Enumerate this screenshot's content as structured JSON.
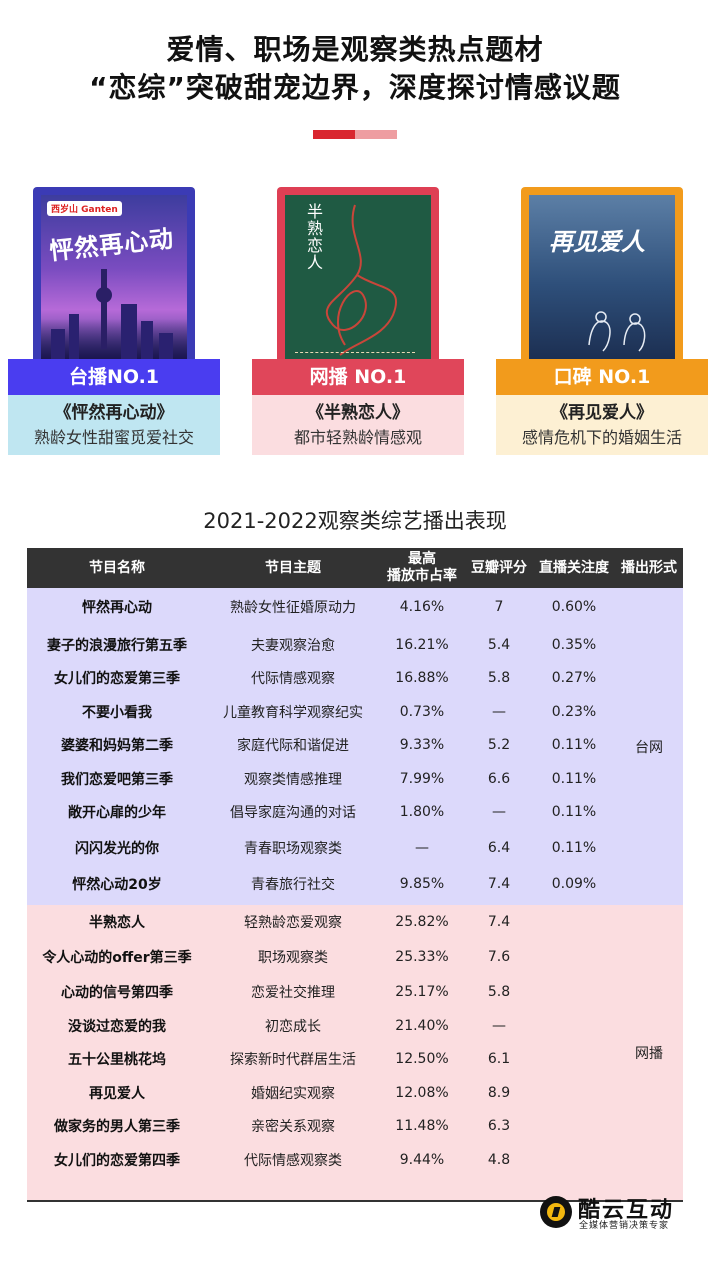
{
  "header": {
    "line1": "爱情、职场是观察类热点题材",
    "line2": "“恋综”突破甜宠边界，深度探讨情感议题"
  },
  "colors": {
    "accent_red": "#d9262f",
    "accent_pink": "#ee9da1",
    "tv_blue": "#4a3df0",
    "web_red": "#e0465a",
    "praise_orange": "#f29b1c"
  },
  "cards": [
    {
      "rank": "台播NO.1",
      "title": "《怦然再心动》",
      "subtitle": "熟龄女性甜蜜觅爱社交",
      "poster_text": "怦然再心动",
      "poster_logo": "西岁山 Ganten",
      "rank_color": "#4a3df0",
      "box_color": "#bfe6f1"
    },
    {
      "rank": "网播 NO.1",
      "title": "《半熟恋人》",
      "subtitle": "都市轻熟龄情感观",
      "poster_text": "半熟恋人",
      "rank_color": "#e0465a",
      "box_color": "#fbdde0"
    },
    {
      "rank": "口碑 NO.1",
      "title": "《再见爱人》",
      "subtitle": "感情危机下的婚姻生活",
      "poster_text": "再见爱人",
      "rank_color": "#f29b1c",
      "box_color": "#fdf0d3"
    }
  ],
  "table": {
    "title": "2021-2022观察类综艺播出表现",
    "headers": {
      "name": "节目名称",
      "theme": "节目主题",
      "share_line1": "最高",
      "share_line2": "播放市占率",
      "douban": "豆瓣评分",
      "live": "直播关注度",
      "form": "播出形式"
    },
    "tv_form": "台网",
    "web_form": "网播",
    "tv_rows": [
      {
        "name": "怦然再心动",
        "theme": "熟龄女性征婚原动力",
        "share": "4.16%",
        "douban": "7",
        "live": "0.60%"
      },
      {
        "name": "妻子的浪漫旅行第五季",
        "theme": "夫妻观察治愈",
        "share": "16.21%",
        "douban": "5.4",
        "live": "0.35%"
      },
      {
        "name": "女儿们的恋爱第三季",
        "theme": "代际情感观察",
        "share": "16.88%",
        "douban": "5.8",
        "live": "0.27%"
      },
      {
        "name": "不要小看我",
        "theme": "儿童教育科学观察纪实",
        "share": "0.73%",
        "douban": "—",
        "live": "0.23%"
      },
      {
        "name": "婆婆和妈妈第二季",
        "theme": "家庭代际和谐促进",
        "share": "9.33%",
        "douban": "5.2",
        "live": "0.11%"
      },
      {
        "name": "我们恋爱吧第三季",
        "theme": "观察类情感推理",
        "share": "7.99%",
        "douban": "6.6",
        "live": "0.11%"
      },
      {
        "name": "敞开心扉的少年",
        "theme": "倡导家庭沟通的对话",
        "share": "1.80%",
        "douban": "—",
        "live": "0.11%"
      },
      {
        "name": "闪闪发光的你",
        "theme": "青春职场观察类",
        "share": "—",
        "douban": "6.4",
        "live": "0.11%"
      },
      {
        "name": "怦然心动20岁",
        "theme": "青春旅行社交",
        "share": "9.85%",
        "douban": "7.4",
        "live": "0.09%"
      }
    ],
    "web_rows": [
      {
        "name": "半熟恋人",
        "theme": "轻熟龄恋爱观察",
        "share": "25.82%",
        "douban": "7.4"
      },
      {
        "name": "令人心动的offer第三季",
        "theme": "职场观察类",
        "share": "25.33%",
        "douban": "7.6"
      },
      {
        "name": "心动的信号第四季",
        "theme": "恋爱社交推理",
        "share": "25.17%",
        "douban": "5.8"
      },
      {
        "name": "没谈过恋爱的我",
        "theme": "初恋成长",
        "share": "21.40%",
        "douban": "—"
      },
      {
        "name": "五十公里桃花坞",
        "theme": "探索新时代群居生活",
        "share": "12.50%",
        "douban": "6.1"
      },
      {
        "name": "再见爱人",
        "theme": "婚姻纪实观察",
        "share": "12.08%",
        "douban": "8.9"
      },
      {
        "name": "做家务的男人第三季",
        "theme": "亲密关系观察",
        "share": "11.48%",
        "douban": "6.3"
      },
      {
        "name": "女儿们的恋爱第四季",
        "theme": "代际情感观察类",
        "share": "9.44%",
        "douban": "4.8"
      }
    ]
  },
  "brand": {
    "name": "酷云互动",
    "slogan": "全媒体营销决策专家",
    "icon": "brand-logo-icon"
  }
}
